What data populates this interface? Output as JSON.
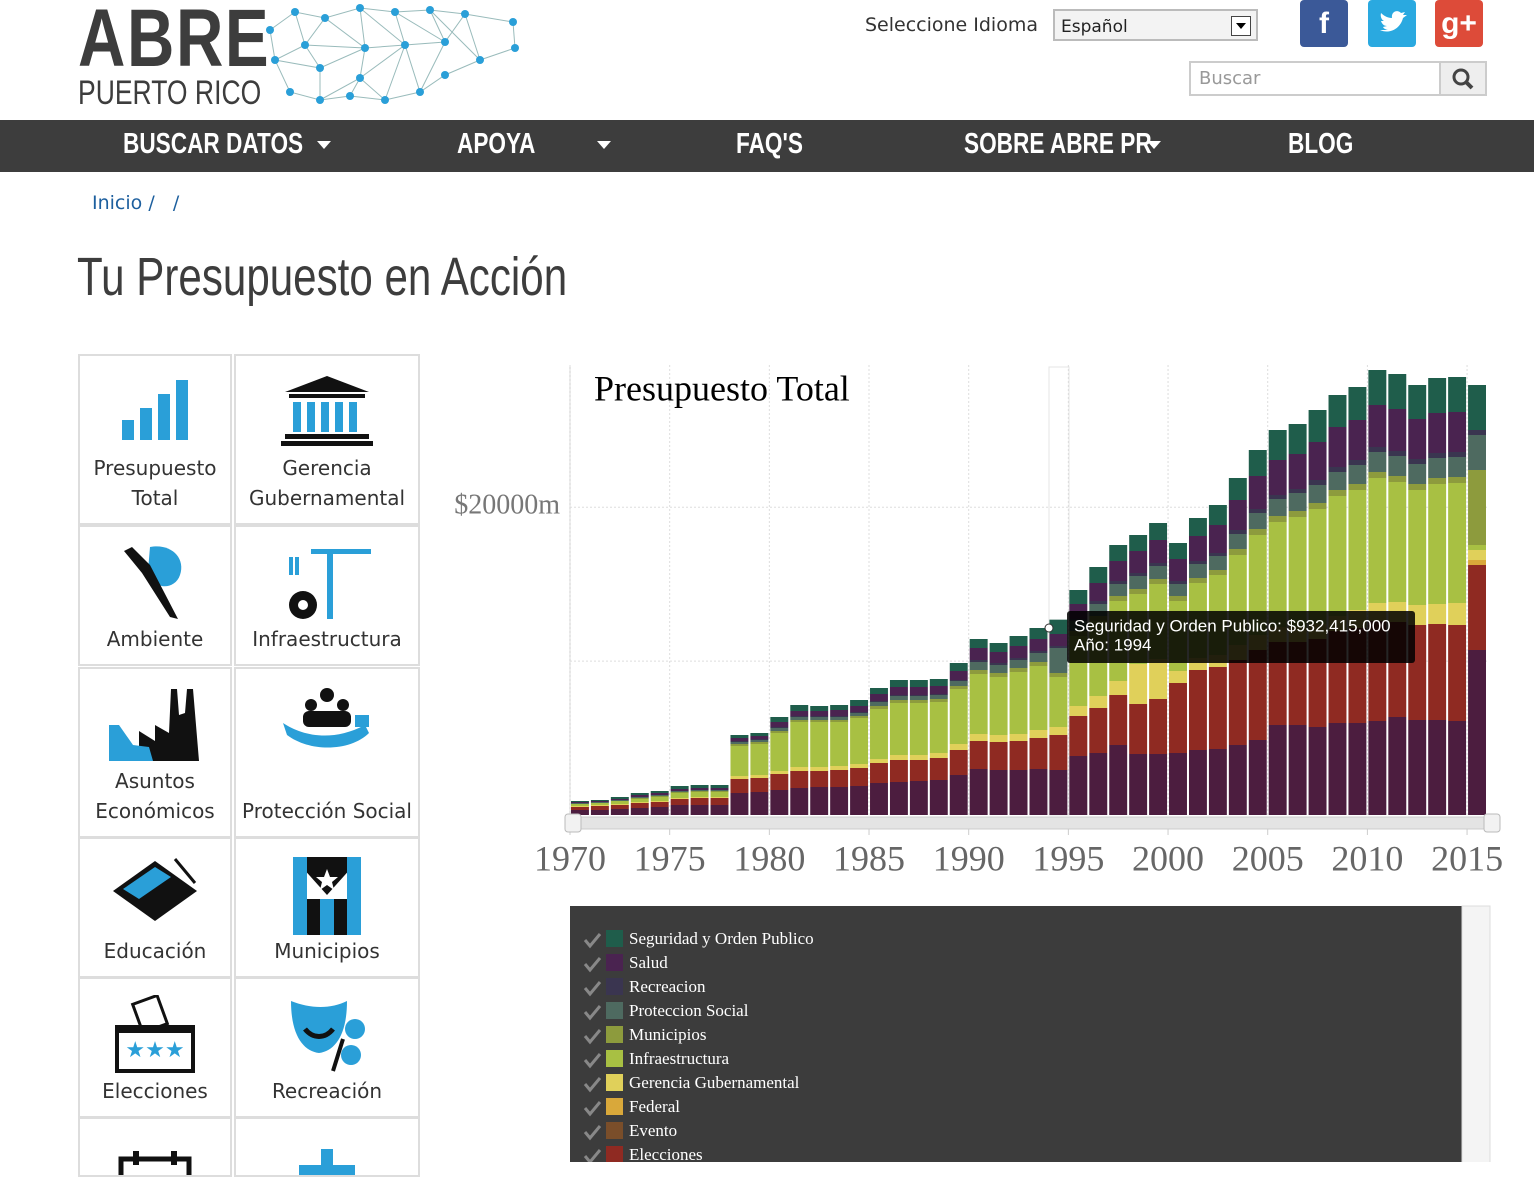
{
  "header": {
    "logo_title": "ABRE",
    "logo_subtitle": "PUERTO RICO",
    "language_label": "Seleccione Idioma",
    "language_value": "Español",
    "search_placeholder": "Buscar",
    "social": {
      "facebook": "f",
      "google": "g+"
    }
  },
  "nav": [
    "BUSCAR DATOS",
    "APOYA",
    "FAQ'S",
    "SOBRE ABRE PR",
    "BLOG"
  ],
  "breadcrumb": {
    "home": "Inicio",
    "separators": [
      "/",
      "/"
    ]
  },
  "page_title": "Tu Presupuesto en Acción",
  "sidebar": [
    "Presupuesto Total",
    "Gerencia Gubernamental",
    "Ambiente",
    "Infraestructura",
    "Asuntos Económicos",
    "Protección Social",
    "Educación",
    "Municipios",
    "Elecciones",
    "Recreación"
  ],
  "chart_data": {
    "type": "bar",
    "stacked": true,
    "title": "Presupuesto Total",
    "grid": true,
    "x": [
      1970,
      1971,
      1972,
      1973,
      1974,
      1975,
      1976,
      1977,
      1978,
      1979,
      1980,
      1981,
      1982,
      1983,
      1984,
      1985,
      1986,
      1987,
      1988,
      1989,
      1990,
      1991,
      1992,
      1993,
      1994,
      1995,
      1996,
      1997,
      1998,
      1999,
      2000,
      2001,
      2002,
      2003,
      2004,
      2005,
      2006,
      2007,
      2008,
      2009,
      2010,
      2011,
      2012,
      2013,
      2014,
      2015
    ],
    "xlim": [
      1970,
      2016
    ],
    "xticks": [
      1970,
      1975,
      1980,
      1985,
      1990,
      1995,
      2000,
      2005,
      2010,
      2015
    ],
    "ylim": [
      0,
      29250
    ],
    "yticks": [
      {
        "value": 10000,
        "label": null
      },
      {
        "value": 20000,
        "label": "$20000m"
      }
    ],
    "series": [
      {
        "name": "Seguridad y Orden Publico",
        "color": "#1f5d4b",
        "values": [
          65,
          65,
          130,
          130,
          130,
          195,
          195,
          195,
          195,
          195,
          325,
          390,
          325,
          325,
          390,
          390,
          455,
          455,
          455,
          520,
          585,
          585,
          650,
          715,
          932.415,
          910,
          1040,
          1040,
          1040,
          1105,
          1040,
          1170,
          1300,
          1430,
          1690,
          1950,
          1950,
          2080,
          2080,
          2145,
          2275,
          2275,
          2210,
          2275,
          2275,
          2925
        ]
      },
      {
        "name": "Salud",
        "color": "#4a2350",
        "values": [
          65,
          65,
          65,
          130,
          130,
          130,
          130,
          130,
          195,
          195,
          325,
          325,
          325,
          390,
          390,
          455,
          520,
          520,
          520,
          585,
          780,
          715,
          780,
          780,
          780,
          975,
          1170,
          1300,
          1430,
          1495,
          1430,
          1625,
          1820,
          1950,
          2145,
          2275,
          2275,
          2470,
          2600,
          2600,
          2730,
          2730,
          2600,
          2600,
          2600,
          0
        ]
      },
      {
        "name": "Recreacion",
        "color": "#3a3550",
        "values": [
          0,
          0,
          0,
          0,
          0,
          0,
          0,
          0,
          65,
          65,
          65,
          65,
          65,
          65,
          65,
          65,
          65,
          65,
          65,
          65,
          130,
          130,
          130,
          130,
          130,
          130,
          195,
          195,
          195,
          195,
          195,
          195,
          195,
          260,
          260,
          260,
          260,
          325,
          325,
          325,
          325,
          325,
          325,
          325,
          325,
          325
        ]
      },
      {
        "name": "Proteccion Social",
        "color": "#4e6a60",
        "values": [
          65,
          65,
          65,
          65,
          65,
          65,
          65,
          65,
          130,
          130,
          195,
          195,
          195,
          195,
          195,
          260,
          260,
          260,
          260,
          325,
          520,
          520,
          520,
          585,
          1625,
          650,
          780,
          780,
          845,
          845,
          780,
          910,
          910,
          975,
          1040,
          1105,
          1170,
          1170,
          1170,
          1235,
          1300,
          1300,
          1300,
          1300,
          1300,
          2275
        ]
      },
      {
        "name": "Municipios",
        "color": "#8d9b3d",
        "values": [
          0,
          0,
          0,
          65,
          65,
          65,
          65,
          65,
          130,
          130,
          130,
          130,
          130,
          130,
          130,
          195,
          195,
          195,
          195,
          195,
          260,
          260,
          260,
          260,
          260,
          325,
          325,
          325,
          325,
          325,
          325,
          325,
          325,
          390,
          390,
          390,
          390,
          390,
          390,
          390,
          390,
          390,
          390,
          390,
          390,
          4875
        ]
      },
      {
        "name": "Infraestructura",
        "color": "#a8c043",
        "values": [
          130,
          130,
          195,
          195,
          260,
          325,
          325,
          325,
          1950,
          2015,
          2470,
          2925,
          2925,
          2860,
          2990,
          3250,
          3380,
          3380,
          3315,
          3575,
          3900,
          3770,
          4030,
          4160,
          3250,
          4550,
          4875,
          5200,
          4550,
          4875,
          4550,
          4875,
          5200,
          5850,
          6500,
          6825,
          7150,
          7475,
          7800,
          7800,
          8125,
          7800,
          7475,
          7800,
          7800,
          325
        ]
      },
      {
        "name": "Gerencia Gubernamental",
        "color": "#e0d05a",
        "values": [
          65,
          65,
          65,
          65,
          65,
          65,
          65,
          65,
          195,
          195,
          195,
          260,
          260,
          260,
          260,
          260,
          325,
          325,
          325,
          390,
          455,
          455,
          455,
          520,
          520,
          650,
          780,
          910,
          2600,
          2600,
          780,
          780,
          780,
          975,
          975,
          975,
          975,
          975,
          975,
          1170,
          1170,
          1300,
          1300,
          1300,
          1430,
          650
        ]
      },
      {
        "name": "Federal",
        "color": "#d9a83a",
        "values": [
          0,
          0,
          0,
          0,
          0,
          0,
          0,
          0,
          0,
          0,
          0,
          0,
          0,
          0,
          0,
          0,
          0,
          0,
          0,
          0,
          0,
          0,
          0,
          0,
          0,
          0,
          0,
          0,
          0,
          0,
          0,
          0,
          0,
          0,
          0,
          0,
          0,
          0,
          0,
          0,
          0,
          0,
          0,
          0,
          0,
          325
        ]
      },
      {
        "name": "Evento",
        "color": "#7a4e2a",
        "values": [
          0,
          0,
          0,
          0,
          0,
          0,
          0,
          0,
          0,
          0,
          0,
          0,
          0,
          0,
          0,
          0,
          0,
          0,
          0,
          0,
          0,
          0,
          0,
          0,
          0,
          0,
          0,
          0,
          0,
          0,
          0,
          0,
          0,
          0,
          0,
          0,
          0,
          0,
          0,
          0,
          0,
          0,
          0,
          0,
          0,
          0
        ]
      },
      {
        "name": "Elecciones",
        "color": "#8f2a22",
        "values": [
          195,
          260,
          260,
          325,
          325,
          390,
          455,
          455,
          910,
          910,
          1040,
          1105,
          1040,
          1105,
          1170,
          1300,
          1430,
          1365,
          1430,
          1625,
          1820,
          1820,
          1885,
          2015,
          2275,
          2600,
          2925,
          3250,
          3250,
          3575,
          4550,
          5200,
          5330,
          5525,
          5850,
          5395,
          5395,
          5720,
          5980,
          6175,
          6500,
          6175,
          6175,
          6240,
          6240,
          5525
        ]
      },
      {
        "name": null,
        "color": "#4c1d3f",
        "values": [
          325,
          325,
          390,
          455,
          520,
          650,
          650,
          650,
          1430,
          1495,
          1625,
          1755,
          1820,
          1820,
          1885,
          2080,
          2145,
          2210,
          2275,
          2600,
          2990,
          2925,
          2925,
          2990,
          2925,
          3835,
          4030,
          4550,
          3965,
          3965,
          4030,
          4225,
          4290,
          4550,
          4875,
          5850,
          5850,
          5720,
          5980,
          5980,
          6110,
          6370,
          6175,
          6175,
          6110,
          10725
        ]
      }
    ],
    "tooltip": {
      "lines": [
        "Seguridad y Orden Publico: $932,415,000",
        "Año: 1994"
      ]
    }
  }
}
